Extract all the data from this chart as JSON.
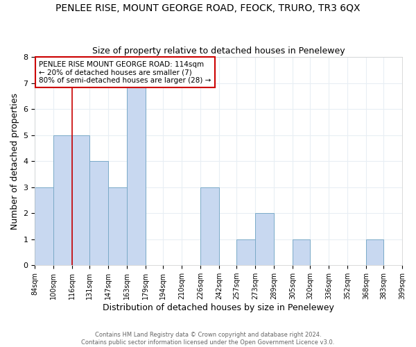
{
  "title": "PENLEE RISE, MOUNT GEORGE ROAD, FEOCK, TRURO, TR3 6QX",
  "subtitle": "Size of property relative to detached houses in Penelewey",
  "xlabel": "Distribution of detached houses by size in Penelewey",
  "ylabel": "Number of detached properties",
  "footer_line1": "Contains HM Land Registry data © Crown copyright and database right 2024.",
  "footer_line2": "Contains public sector information licensed under the Open Government Licence v3.0.",
  "bin_edges": [
    84,
    100,
    116,
    131,
    147,
    163,
    179,
    194,
    210,
    226,
    242,
    257,
    273,
    289,
    305,
    320,
    336,
    352,
    368,
    383,
    399
  ],
  "bin_labels": [
    "84sqm",
    "100sqm",
    "116sqm",
    "131sqm",
    "147sqm",
    "163sqm",
    "179sqm",
    "194sqm",
    "210sqm",
    "226sqm",
    "242sqm",
    "257sqm",
    "273sqm",
    "289sqm",
    "305sqm",
    "320sqm",
    "336sqm",
    "352sqm",
    "368sqm",
    "383sqm",
    "399sqm"
  ],
  "counts": [
    3,
    5,
    5,
    4,
    3,
    7,
    0,
    0,
    0,
    3,
    0,
    1,
    2,
    0,
    1,
    0,
    0,
    0,
    1,
    0
  ],
  "reference_bin_index": 2,
  "bar_color": "#c8d8f0",
  "bar_edge_color": "#7aaac8",
  "reference_line_color": "#cc0000",
  "ylim": [
    0,
    8
  ],
  "annotation_text": "PENLEE RISE MOUNT GEORGE ROAD: 114sqm\n← 20% of detached houses are smaller (7)\n80% of semi-detached houses are larger (28) →",
  "annotation_box_edge": "#cc0000",
  "background_color": "#ffffff",
  "grid_color": "#e8eef4",
  "title_fontsize": 10,
  "subtitle_fontsize": 9
}
